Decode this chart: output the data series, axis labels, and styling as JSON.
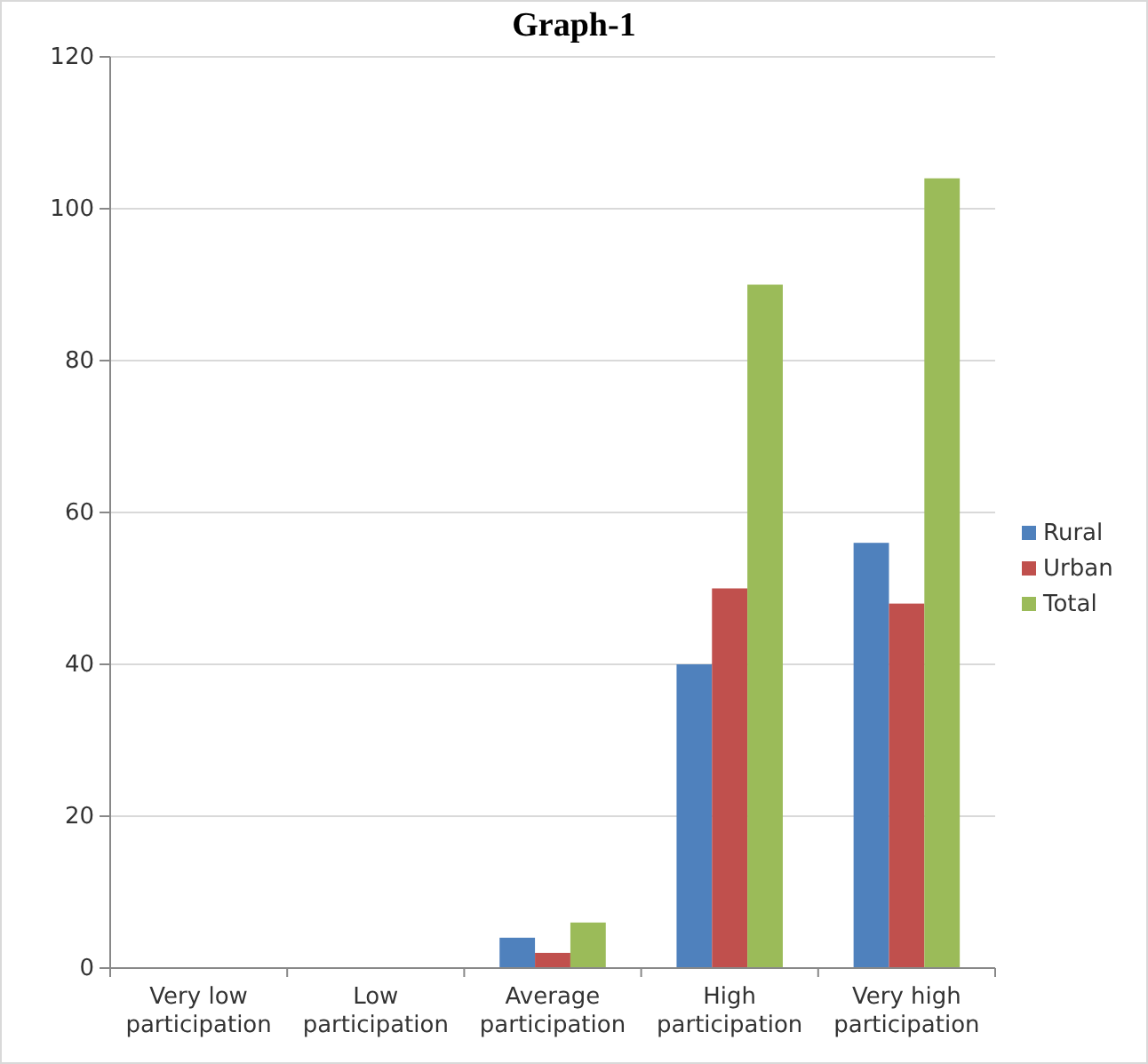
{
  "chart_data": {
    "type": "bar",
    "title": "Graph-1",
    "categories": [
      "Very low participation",
      "Low participation",
      "Average participation",
      "High participation",
      "Very high participation"
    ],
    "series": [
      {
        "name": "Rural",
        "color": "#4f81bd",
        "values": [
          0,
          0,
          4,
          40,
          56
        ]
      },
      {
        "name": "Urban",
        "color": "#c0504d",
        "values": [
          0,
          0,
          2,
          50,
          48
        ]
      },
      {
        "name": "Total",
        "color": "#9bbb59",
        "values": [
          0,
          0,
          6,
          90,
          104
        ]
      }
    ],
    "ylim": [
      0,
      120
    ],
    "yticks": [
      0,
      20,
      40,
      60,
      80,
      100,
      120
    ],
    "grid": "y",
    "legend": "right"
  }
}
